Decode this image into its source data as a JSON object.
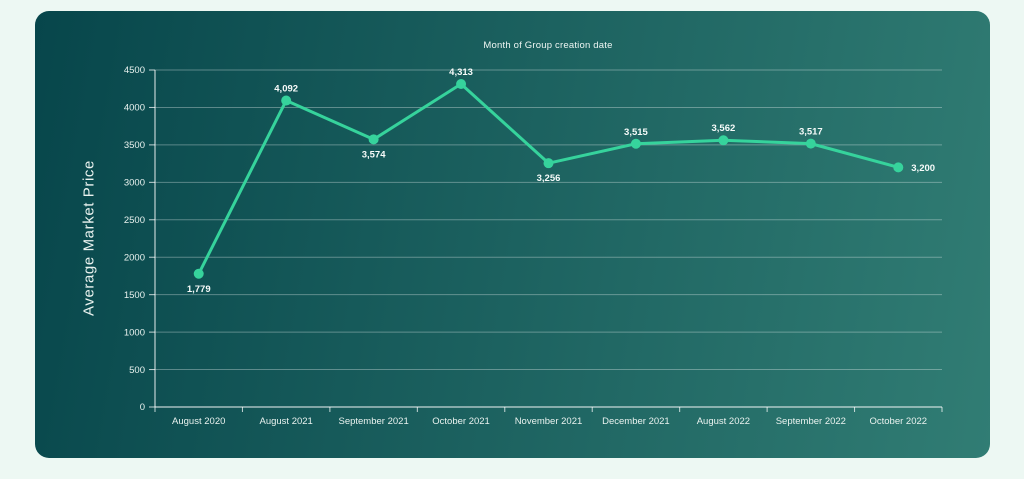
{
  "page": {
    "background": "#edf8f3"
  },
  "card": {
    "gradient_start": "#07464b",
    "gradient_end": "#317d74"
  },
  "chart_data": {
    "type": "line",
    "title": "Month of Group creation date",
    "xlabel": "",
    "ylabel": "Average Market Price",
    "categories": [
      "August 2020",
      "August 2021",
      "September 2021",
      "October 2021",
      "November 2021",
      "December 2021",
      "August 2022",
      "September 2022",
      "October 2022"
    ],
    "values": [
      1779,
      4092,
      3574,
      4313,
      3256,
      3515,
      3562,
      3517,
      3200
    ],
    "point_labels": [
      "1,779",
      "4,092",
      "3,574",
      "4,313",
      "3,256",
      "3,515",
      "3,562",
      "3,517",
      "3,200"
    ],
    "label_positions": [
      "below",
      "above",
      "below",
      "above",
      "below",
      "above",
      "above",
      "above",
      "right"
    ],
    "ylim": [
      0,
      4500
    ],
    "ytick_step": 500,
    "grid": true,
    "legend": false,
    "line_color": "#36d39c",
    "marker_color": "#36d39c",
    "grid_color": "rgba(255,255,255,0.32)",
    "axis_color": "rgba(255,255,255,0.75)",
    "tick_label_color": "#e9f2ef",
    "data_label_color": "#f7fbfa",
    "title_color": "#eef6f3"
  }
}
